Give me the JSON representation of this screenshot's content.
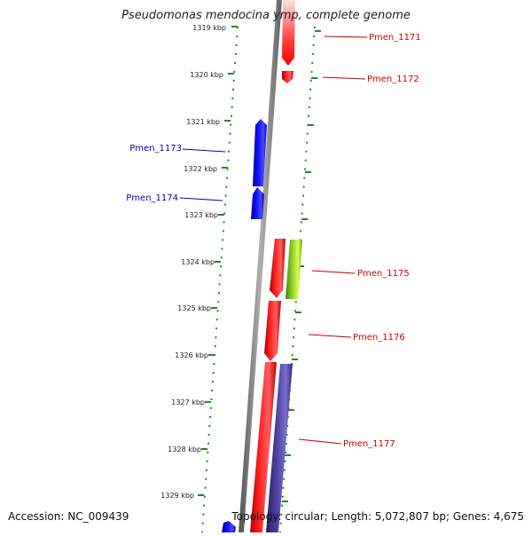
{
  "title": "Pseudomonas mendocina ymp, complete genome",
  "footer": {
    "accession": "Accession: NC_009439",
    "summary": "Topology: circular; Length: 5,072,807 bp; Genes: 4,675"
  },
  "colors": {
    "forward_gene": "#ff0000",
    "reverse_gene": "#0000ff",
    "other_gene_green": "#88cc22",
    "other_gene_purple": "#4a3f95",
    "backbone": "#8a8a8a",
    "tick": "#228822",
    "left_label": "#0000cc",
    "right_label": "#cc0000"
  },
  "ticks": [
    "1319 kbp",
    "1320 kbp",
    "1321 kbp",
    "1322 kbp",
    "1323 kbp",
    "1324 kbp",
    "1325 kbp",
    "1326 kbp",
    "1327 kbp",
    "1328 kbp",
    "1329 kbp"
  ],
  "gene_labels": {
    "left": [
      "Pmen_1173",
      "Pmen_1174"
    ],
    "right": [
      "Pmen_1171",
      "Pmen_1172",
      "Pmen_1175",
      "Pmen_1176",
      "Pmen_1177"
    ]
  }
}
